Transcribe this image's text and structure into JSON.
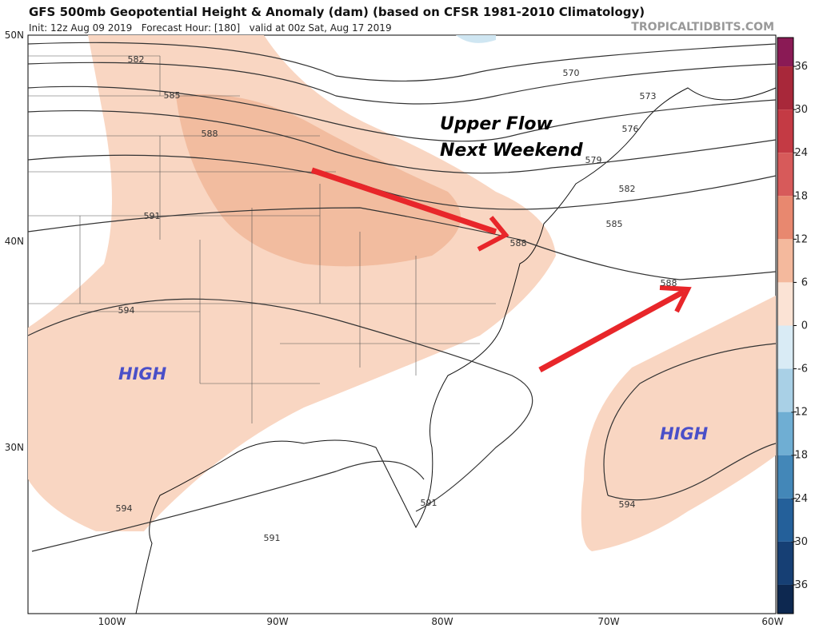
{
  "header": {
    "title": "GFS 500mb Geopotential Height & Anomaly (dam) (based on CFSR 1981-2010 Climatology)",
    "subtitle": "Init: 12z Aug 09 2019   Forecast Hour: [180]   valid at 00z Sat, Aug 17 2019",
    "credit": "TROPICALTIDBITS.COM"
  },
  "map": {
    "lat_labels": [
      "50N",
      "40N",
      "30N"
    ],
    "lon_labels": [
      "100W",
      "90W",
      "80W",
      "70W",
      "60W"
    ],
    "contour_labels": [
      582,
      585,
      588,
      591,
      594,
      570,
      573,
      576,
      579,
      582,
      585,
      588,
      588,
      594,
      591,
      591
    ],
    "annotations": [
      "Upper Flow",
      "Next Weekend",
      "HIGH",
      "HIGH"
    ]
  },
  "colorbar": {
    "lim": [
      -40,
      40
    ],
    "ticks": [
      36,
      30,
      24,
      18,
      12,
      6,
      0,
      -6,
      -12,
      -18,
      -24,
      -30,
      -36
    ],
    "colors": [
      "#8a1a55",
      "#a8283a",
      "#c43a44",
      "#d75a5a",
      "#e8886f",
      "#f4b99d",
      "#fbe3d5",
      "#d9ebf5",
      "#a9d0e6",
      "#6faed3",
      "#4387b8",
      "#24609a",
      "#163f74",
      "#0d2850"
    ]
  }
}
